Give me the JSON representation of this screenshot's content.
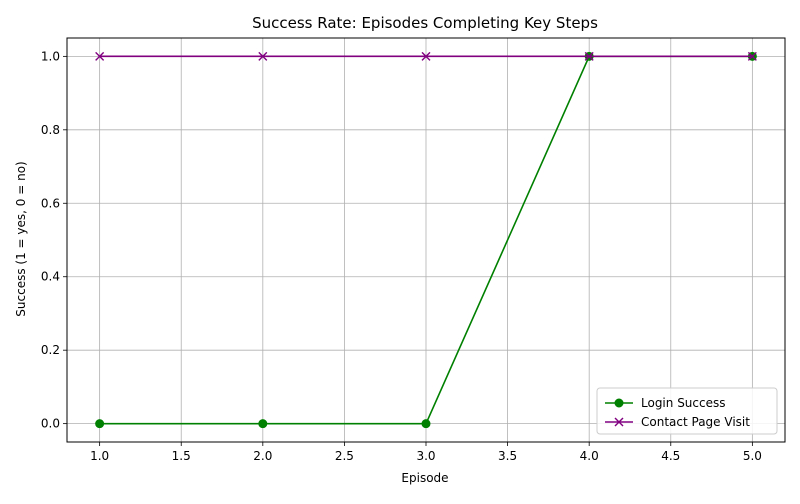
{
  "chart_data": {
    "type": "line",
    "title": "Success Rate: Episodes Completing Key Steps",
    "xlabel": "Episode",
    "ylabel": "Success (1 = yes, 0 = no)",
    "x": [
      1,
      2,
      3,
      4,
      5
    ],
    "xlim": [
      0.8,
      5.2
    ],
    "ylim": [
      -0.05,
      1.05
    ],
    "xticks": [
      1.0,
      1.5,
      2.0,
      2.5,
      3.0,
      3.5,
      4.0,
      4.5,
      5.0
    ],
    "xtick_labels": [
      "1.0",
      "1.5",
      "2.0",
      "2.5",
      "3.0",
      "3.5",
      "4.0",
      "4.5",
      "5.0"
    ],
    "yticks": [
      0.0,
      0.2,
      0.4,
      0.6,
      0.8,
      1.0
    ],
    "ytick_labels": [
      "0.0",
      "0.2",
      "0.4",
      "0.6",
      "0.8",
      "1.0"
    ],
    "grid": true,
    "legend_position": "lower-right",
    "series": [
      {
        "name": "Login Success",
        "values": [
          0,
          0,
          0,
          1,
          1
        ],
        "color": "#008000",
        "marker": "circle"
      },
      {
        "name": "Contact Page Visit",
        "values": [
          1,
          1,
          1,
          1,
          1
        ],
        "color": "#800080",
        "marker": "x"
      }
    ]
  }
}
